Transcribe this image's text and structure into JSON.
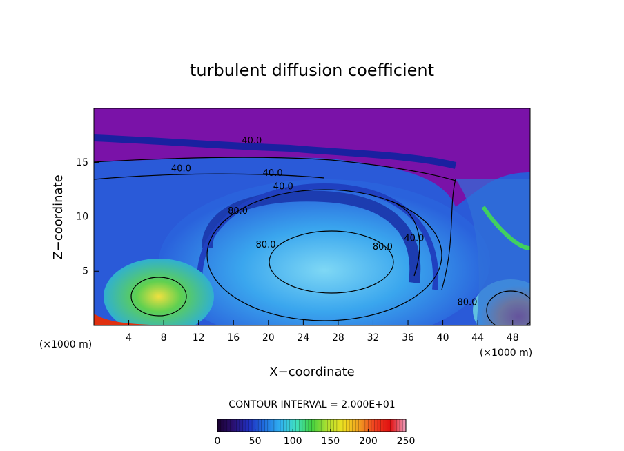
{
  "chart_data": {
    "type": "contour",
    "title": "turbulent diffusion coefficient",
    "xlabel": "X−coordinate",
    "ylabel": "Z−coordinate",
    "x_unit_label": "(×1000 m)",
    "xlim": [
      0,
      50
    ],
    "xticks": [
      4,
      8,
      12,
      16,
      20,
      24,
      28,
      32,
      36,
      40,
      44,
      48
    ],
    "ylim": [
      0,
      20
    ],
    "yticks": [
      5,
      10,
      15
    ],
    "contour_interval_label": "CONTOUR INTERVAL = 2.000E+01",
    "colorbar": {
      "clim": [
        0,
        250
      ],
      "ticks": [
        0,
        50,
        100,
        150,
        200,
        250
      ],
      "colormap": [
        "#1a0030",
        "#2a1070",
        "#2030c0",
        "#2070e0",
        "#30b0f0",
        "#40e0c0",
        "#40d040",
        "#b0e030",
        "#f0e020",
        "#f0a020",
        "#f04020",
        "#e01010",
        "#f0a0c0"
      ]
    },
    "annotations": [
      {
        "text": "40.0",
        "x": 18.1,
        "y": 17
      },
      {
        "text": "40.0",
        "x": 10,
        "y": 14.4
      },
      {
        "text": "40.0",
        "x": 20.5,
        "y": 14
      },
      {
        "text": "40.0",
        "x": 21.7,
        "y": 12.75
      },
      {
        "text": "80.0",
        "x": 16.5,
        "y": 10.5
      },
      {
        "text": "80.0",
        "x": 19.7,
        "y": 7.4
      },
      {
        "text": "80.0",
        "x": 33.1,
        "y": 7.2
      },
      {
        "text": "40.0",
        "x": 36.7,
        "y": 8
      },
      {
        "text": "80.0",
        "x": 42.8,
        "y": 2.1
      }
    ]
  }
}
